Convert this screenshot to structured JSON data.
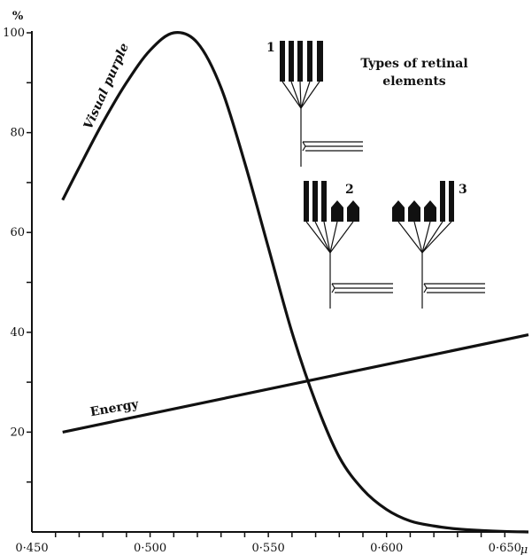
{
  "chart_data": {
    "type": "line",
    "title": "",
    "xlabel": "",
    "ylabel": "%",
    "x_unit": "μ",
    "xlim": [
      0.45,
      0.66
    ],
    "ylim": [
      0,
      100
    ],
    "x_tick_labels": [
      {
        "value": 0.45,
        "label": "0·450"
      },
      {
        "value": 0.5,
        "label": "0·500"
      },
      {
        "value": 0.55,
        "label": "0·550"
      },
      {
        "value": 0.6,
        "label": "0·600"
      },
      {
        "value": 0.65,
        "label": "0·650"
      }
    ],
    "y_tick_labels": [
      {
        "value": 20,
        "label": "20"
      },
      {
        "value": 40,
        "label": "40"
      },
      {
        "value": 60,
        "label": "60"
      },
      {
        "value": 80,
        "label": "80"
      },
      {
        "value": 100,
        "label": "100"
      }
    ],
    "grid": false,
    "series": [
      {
        "name": "Visual purple",
        "points": [
          [
            0.463,
            66.5
          ],
          [
            0.47,
            73
          ],
          [
            0.48,
            82
          ],
          [
            0.49,
            90
          ],
          [
            0.5,
            96.5
          ],
          [
            0.51,
            100
          ],
          [
            0.52,
            98
          ],
          [
            0.53,
            89
          ],
          [
            0.54,
            74
          ],
          [
            0.55,
            57
          ],
          [
            0.56,
            40
          ],
          [
            0.57,
            26
          ],
          [
            0.58,
            15
          ],
          [
            0.59,
            8.5
          ],
          [
            0.6,
            4.5
          ],
          [
            0.61,
            2.2
          ],
          [
            0.62,
            1.2
          ],
          [
            0.63,
            0.6
          ],
          [
            0.64,
            0.3
          ],
          [
            0.65,
            0.1
          ],
          [
            0.66,
            0
          ]
        ]
      },
      {
        "name": "Energy",
        "points": [
          [
            0.463,
            20
          ],
          [
            0.66,
            39.5
          ]
        ]
      }
    ],
    "annotations": {
      "inset_title_line1": "Types of retinal",
      "inset_title_line2": "elements",
      "inset_labels": [
        "1",
        "2",
        "3"
      ]
    }
  }
}
